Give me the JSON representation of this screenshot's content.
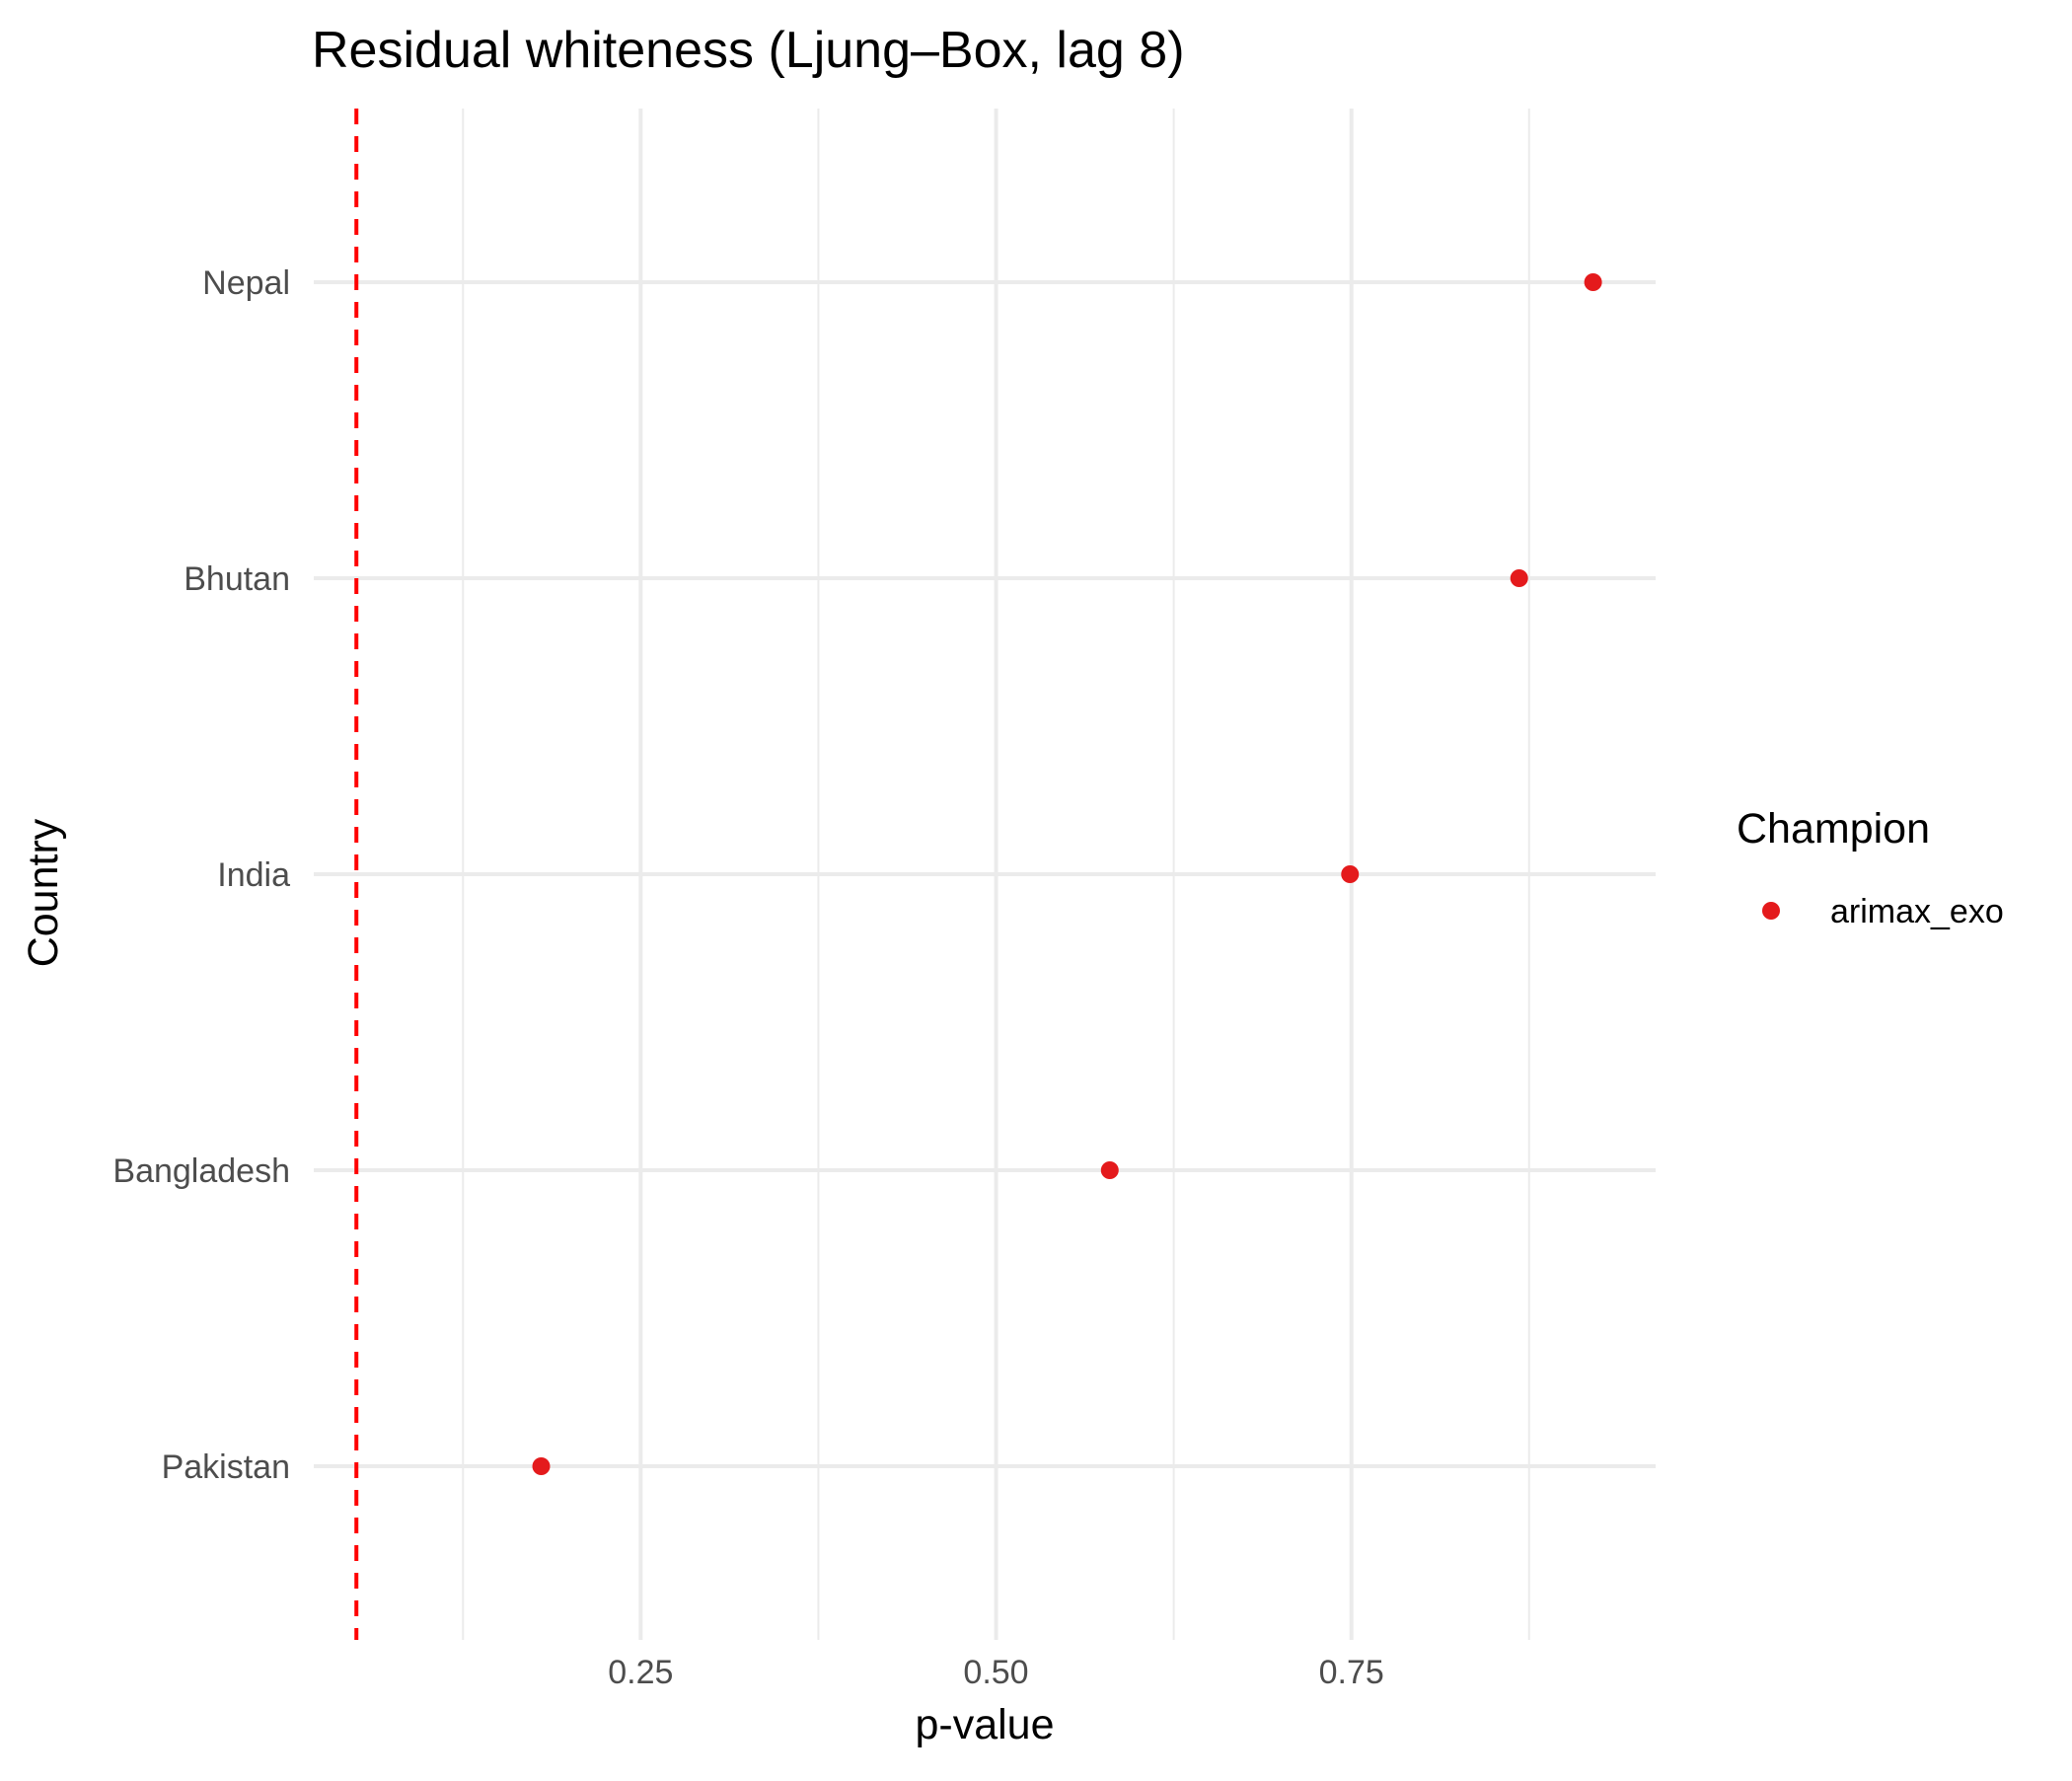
{
  "chart_data": {
    "type": "scatter",
    "title": "Residual whiteness (Ljung–Box, lag 8)",
    "xlabel": "p-value",
    "ylabel": "Country",
    "xlim": [
      0.02,
      0.964
    ],
    "x_ticks": [
      0.25,
      0.5,
      0.75
    ],
    "x_tick_labels": [
      "0.25",
      "0.50",
      "0.75"
    ],
    "x_minor_ticks": [
      0.125,
      0.375,
      0.625,
      0.875
    ],
    "categories": [
      "Nepal",
      "Bhutan",
      "India",
      "Bangladesh",
      "Pakistan"
    ],
    "series": [
      {
        "name": "arimax_exo",
        "color": "#e41a1c",
        "points": [
          {
            "country": "Nepal",
            "p_value": 0.92
          },
          {
            "country": "Bhutan",
            "p_value": 0.868
          },
          {
            "country": "India",
            "p_value": 0.749
          },
          {
            "country": "Bangladesh",
            "p_value": 0.58
          },
          {
            "country": "Pakistan",
            "p_value": 0.18
          }
        ]
      }
    ],
    "reference_line": {
      "x": 0.05,
      "color": "#ff0000",
      "style": "dashed"
    },
    "legend": {
      "title": "Champion",
      "position": "right"
    },
    "grid": true
  }
}
